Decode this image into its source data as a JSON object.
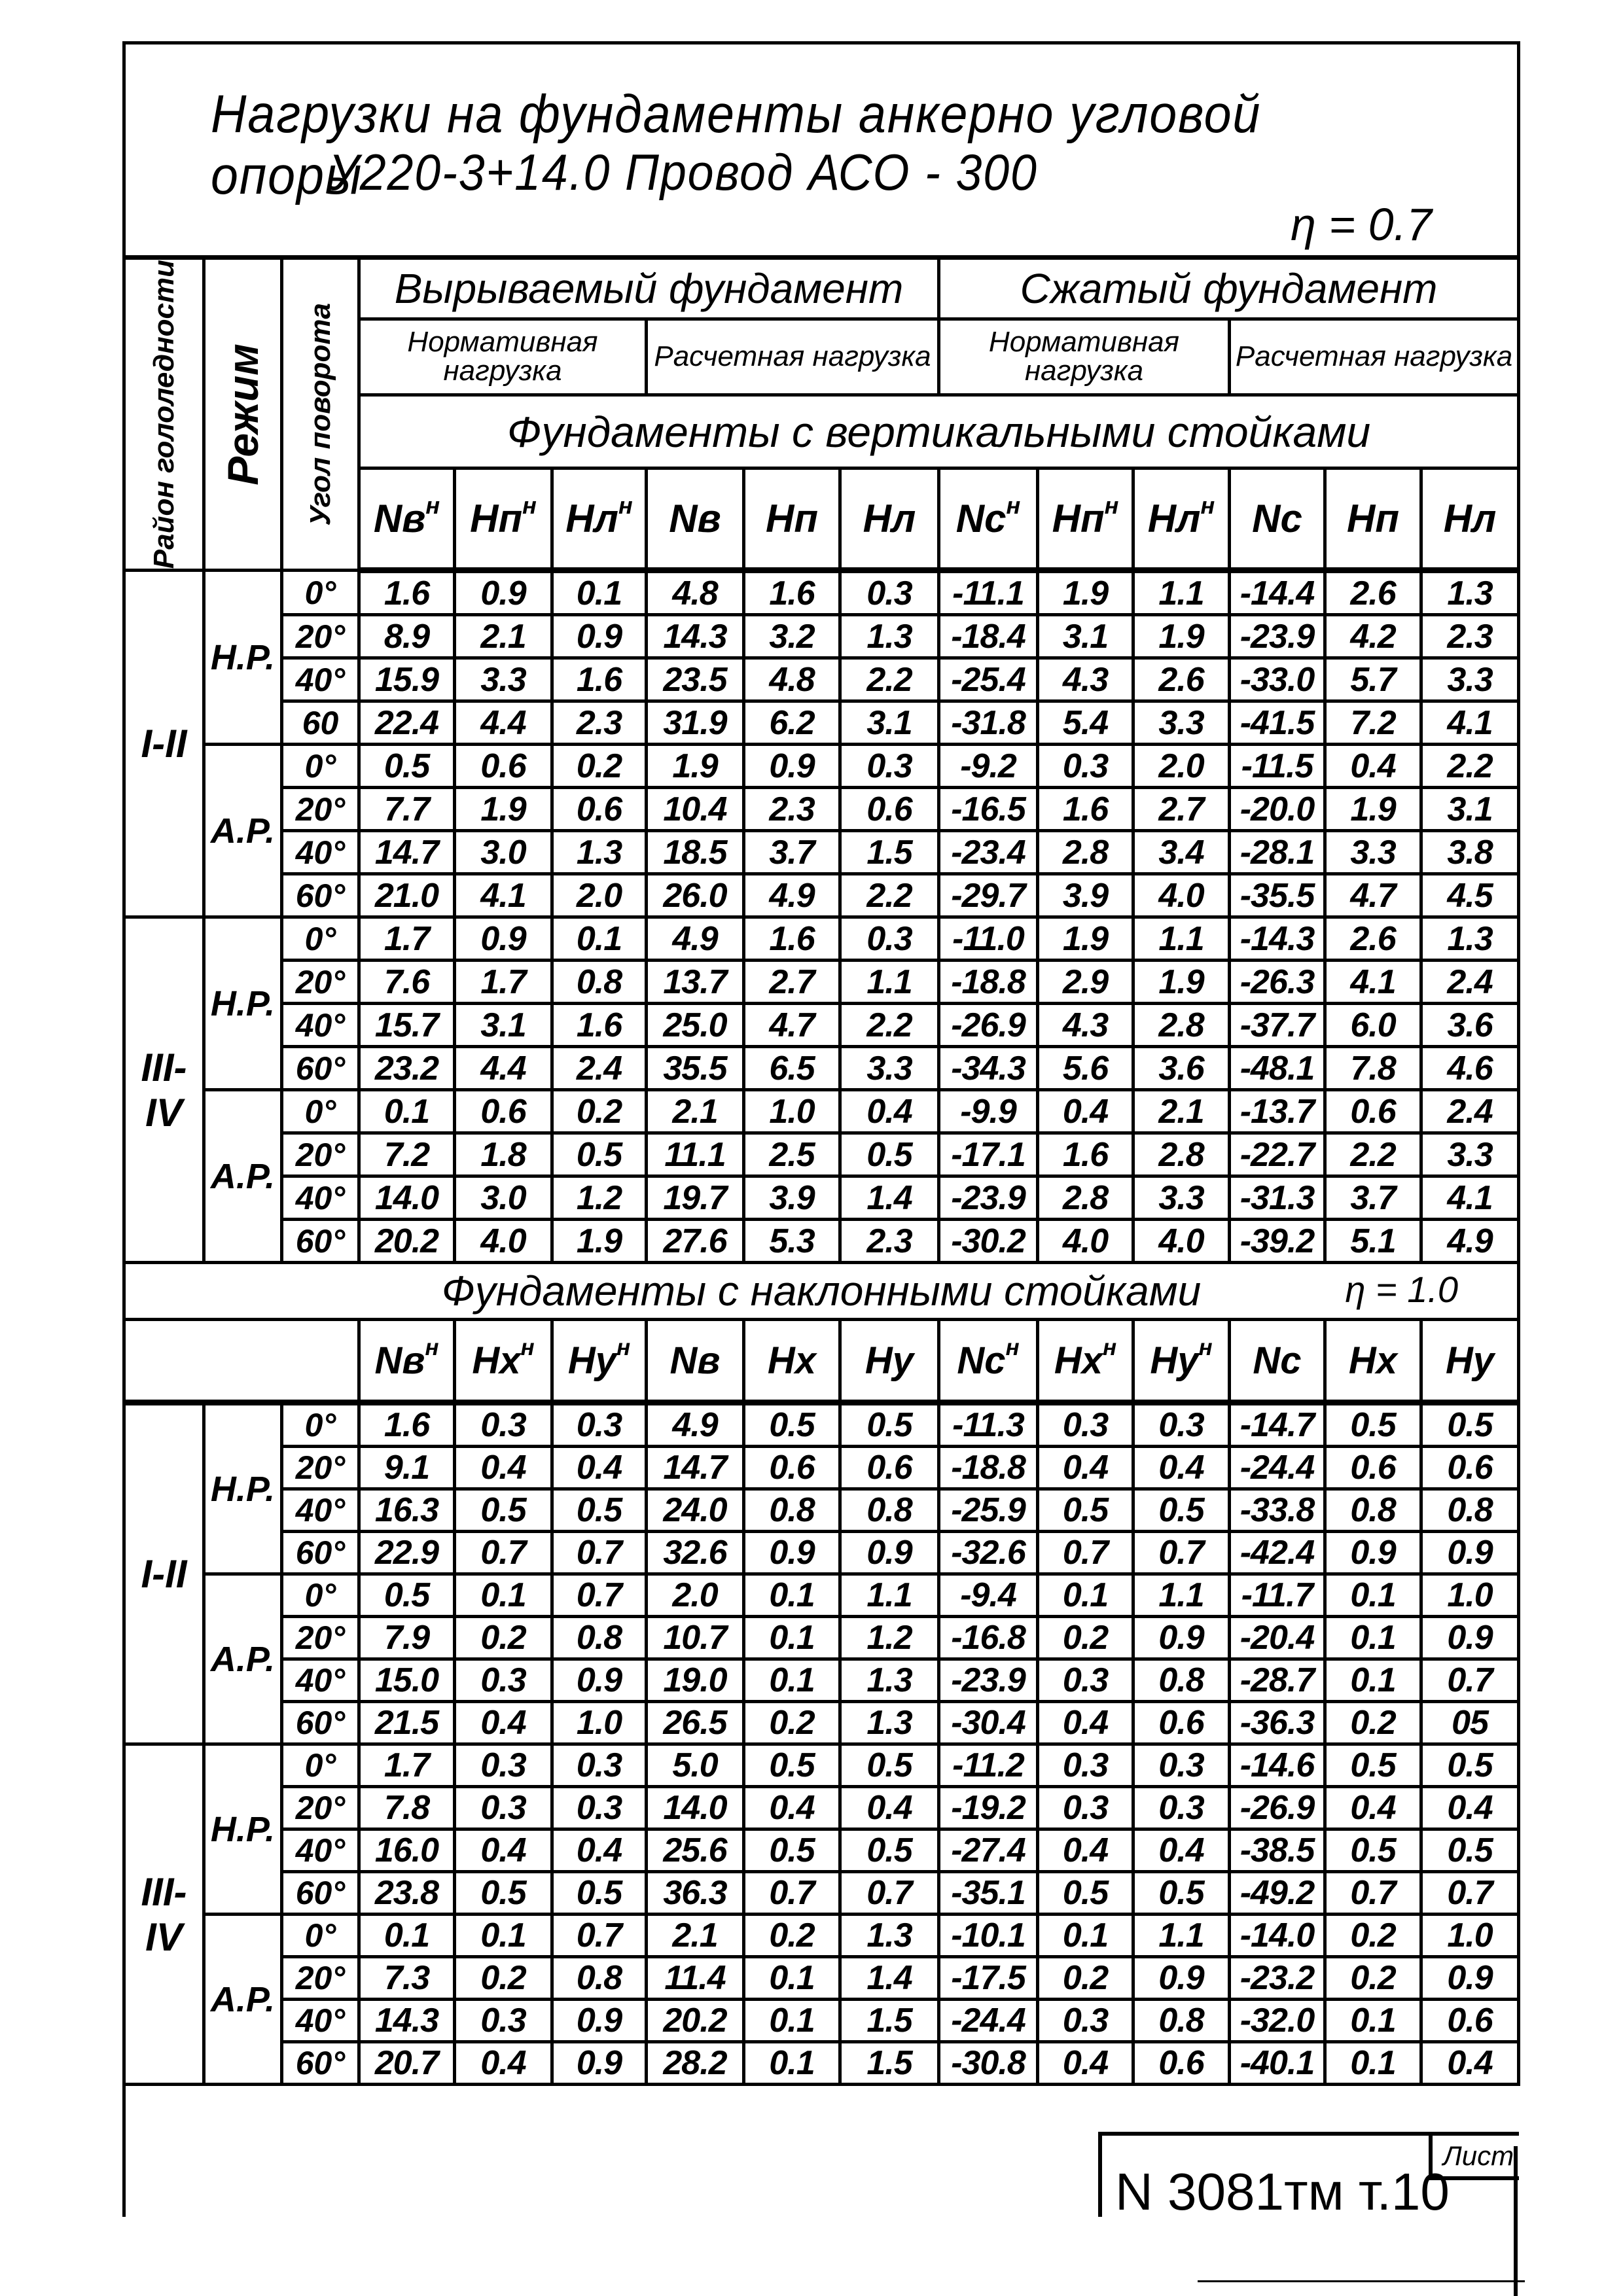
{
  "title": {
    "line1": "Нагрузки на фундаменты анкерно угловой опоры",
    "line2": "У220-3+14.0   Провод   АСО - 300",
    "eta": "η = 0.7"
  },
  "header": {
    "ice_region": "Район гололедности",
    "mode": "Режим",
    "angle": "Угол поворота",
    "uplift": "Вырываемый фундамент",
    "compressed": "Сжатый фундамент",
    "normative": "Нормативная нагрузка",
    "design": "Расчетная нагрузка"
  },
  "section1": {
    "title": "Фундаменты с вертикальными стойками",
    "symbols": [
      {
        "base": "Nв",
        "sup": "н"
      },
      {
        "base": "Hп",
        "sup": "н"
      },
      {
        "base": "Hл",
        "sup": "н"
      },
      {
        "base": "Nв",
        "sup": ""
      },
      {
        "base": "Hп",
        "sup": ""
      },
      {
        "base": "Hл",
        "sup": ""
      },
      {
        "base": "Nc",
        "sup": "н"
      },
      {
        "base": "Hп",
        "sup": "н"
      },
      {
        "base": "Hл",
        "sup": "н"
      },
      {
        "base": "Nc",
        "sup": ""
      },
      {
        "base": "Hп",
        "sup": ""
      },
      {
        "base": "Hл",
        "sup": ""
      }
    ],
    "groups": [
      {
        "region": "I-II",
        "modes": [
          {
            "mode": "Н.Р.",
            "rows": [
              {
                "angle": "0°",
                "values": [
                  "1.6",
                  "0.9",
                  "0.1",
                  "4.8",
                  "1.6",
                  "0.3",
                  "-11.1",
                  "1.9",
                  "1.1",
                  "-14.4",
                  "2.6",
                  "1.3"
                ]
              },
              {
                "angle": "20°",
                "values": [
                  "8.9",
                  "2.1",
                  "0.9",
                  "14.3",
                  "3.2",
                  "1.3",
                  "-18.4",
                  "3.1",
                  "1.9",
                  "-23.9",
                  "4.2",
                  "2.3"
                ]
              },
              {
                "angle": "40°",
                "values": [
                  "15.9",
                  "3.3",
                  "1.6",
                  "23.5",
                  "4.8",
                  "2.2",
                  "-25.4",
                  "4.3",
                  "2.6",
                  "-33.0",
                  "5.7",
                  "3.3"
                ]
              },
              {
                "angle": "60",
                "values": [
                  "22.4",
                  "4.4",
                  "2.3",
                  "31.9",
                  "6.2",
                  "3.1",
                  "-31.8",
                  "5.4",
                  "3.3",
                  "-41.5",
                  "7.2",
                  "4.1"
                ]
              }
            ]
          },
          {
            "mode": "А.Р.",
            "rows": [
              {
                "angle": "0°",
                "values": [
                  "0.5",
                  "0.6",
                  "0.2",
                  "1.9",
                  "0.9",
                  "0.3",
                  "-9.2",
                  "0.3",
                  "2.0",
                  "-11.5",
                  "0.4",
                  "2.2"
                ]
              },
              {
                "angle": "20°",
                "values": [
                  "7.7",
                  "1.9",
                  "0.6",
                  "10.4",
                  "2.3",
                  "0.6",
                  "-16.5",
                  "1.6",
                  "2.7",
                  "-20.0",
                  "1.9",
                  "3.1"
                ]
              },
              {
                "angle": "40°",
                "values": [
                  "14.7",
                  "3.0",
                  "1.3",
                  "18.5",
                  "3.7",
                  "1.5",
                  "-23.4",
                  "2.8",
                  "3.4",
                  "-28.1",
                  "3.3",
                  "3.8"
                ]
              },
              {
                "angle": "60°",
                "values": [
                  "21.0",
                  "4.1",
                  "2.0",
                  "26.0",
                  "4.9",
                  "2.2",
                  "-29.7",
                  "3.9",
                  "4.0",
                  "-35.5",
                  "4.7",
                  "4.5"
                ]
              }
            ]
          }
        ]
      },
      {
        "region": "III-IV",
        "modes": [
          {
            "mode": "Н.Р.",
            "rows": [
              {
                "angle": "0°",
                "values": [
                  "1.7",
                  "0.9",
                  "0.1",
                  "4.9",
                  "1.6",
                  "0.3",
                  "-11.0",
                  "1.9",
                  "1.1",
                  "-14.3",
                  "2.6",
                  "1.3"
                ]
              },
              {
                "angle": "20°",
                "values": [
                  "7.6",
                  "1.7",
                  "0.8",
                  "13.7",
                  "2.7",
                  "1.1",
                  "-18.8",
                  "2.9",
                  "1.9",
                  "-26.3",
                  "4.1",
                  "2.4"
                ]
              },
              {
                "angle": "40°",
                "values": [
                  "15.7",
                  "3.1",
                  "1.6",
                  "25.0",
                  "4.7",
                  "2.2",
                  "-26.9",
                  "4.3",
                  "2.8",
                  "-37.7",
                  "6.0",
                  "3.6"
                ]
              },
              {
                "angle": "60°",
                "values": [
                  "23.2",
                  "4.4",
                  "2.4",
                  "35.5",
                  "6.5",
                  "3.3",
                  "-34.3",
                  "5.6",
                  "3.6",
                  "-48.1",
                  "7.8",
                  "4.6"
                ]
              }
            ]
          },
          {
            "mode": "А.Р.",
            "rows": [
              {
                "angle": "0°",
                "values": [
                  "0.1",
                  "0.6",
                  "0.2",
                  "2.1",
                  "1.0",
                  "0.4",
                  "-9.9",
                  "0.4",
                  "2.1",
                  "-13.7",
                  "0.6",
                  "2.4"
                ]
              },
              {
                "angle": "20°",
                "values": [
                  "7.2",
                  "1.8",
                  "0.5",
                  "11.1",
                  "2.5",
                  "0.5",
                  "-17.1",
                  "1.6",
                  "2.8",
                  "-22.7",
                  "2.2",
                  "3.3"
                ]
              },
              {
                "angle": "40°",
                "values": [
                  "14.0",
                  "3.0",
                  "1.2",
                  "19.7",
                  "3.9",
                  "1.4",
                  "-23.9",
                  "2.8",
                  "3.3",
                  "-31.3",
                  "3.7",
                  "4.1"
                ]
              },
              {
                "angle": "60°",
                "values": [
                  "20.2",
                  "4.0",
                  "1.9",
                  "27.6",
                  "5.3",
                  "2.3",
                  "-30.2",
                  "4.0",
                  "4.0",
                  "-39.2",
                  "5.1",
                  "4.9"
                ]
              }
            ]
          }
        ]
      }
    ]
  },
  "section2": {
    "title": "Фундаменты с наклонными стойками",
    "eta": "η = 1.0",
    "symbols": [
      {
        "base": "Nв",
        "sup": "н"
      },
      {
        "base": "Hx",
        "sup": "н"
      },
      {
        "base": "Hy",
        "sup": "н"
      },
      {
        "base": "Nв",
        "sup": ""
      },
      {
        "base": "Hx",
        "sup": ""
      },
      {
        "base": "Hy",
        "sup": ""
      },
      {
        "base": "Nc",
        "sup": "н"
      },
      {
        "base": "Hx",
        "sup": "н"
      },
      {
        "base": "Hy",
        "sup": "н"
      },
      {
        "base": "Nc",
        "sup": ""
      },
      {
        "base": "Hx",
        "sup": ""
      },
      {
        "base": "Hy",
        "sup": ""
      }
    ],
    "groups": [
      {
        "region": "I-II",
        "modes": [
          {
            "mode": "Н.Р.",
            "rows": [
              {
                "angle": "0°",
                "values": [
                  "1.6",
                  "0.3",
                  "0.3",
                  "4.9",
                  "0.5",
                  "0.5",
                  "-11.3",
                  "0.3",
                  "0.3",
                  "-14.7",
                  "0.5",
                  "0.5"
                ]
              },
              {
                "angle": "20°",
                "values": [
                  "9.1",
                  "0.4",
                  "0.4",
                  "14.7",
                  "0.6",
                  "0.6",
                  "-18.8",
                  "0.4",
                  "0.4",
                  "-24.4",
                  "0.6",
                  "0.6"
                ]
              },
              {
                "angle": "40°",
                "values": [
                  "16.3",
                  "0.5",
                  "0.5",
                  "24.0",
                  "0.8",
                  "0.8",
                  "-25.9",
                  "0.5",
                  "0.5",
                  "-33.8",
                  "0.8",
                  "0.8"
                ]
              },
              {
                "angle": "60°",
                "values": [
                  "22.9",
                  "0.7",
                  "0.7",
                  "32.6",
                  "0.9",
                  "0.9",
                  "-32.6",
                  "0.7",
                  "0.7",
                  "-42.4",
                  "0.9",
                  "0.9"
                ]
              }
            ]
          },
          {
            "mode": "А.Р.",
            "rows": [
              {
                "angle": "0°",
                "values": [
                  "0.5",
                  "0.1",
                  "0.7",
                  "2.0",
                  "0.1",
                  "1.1",
                  "-9.4",
                  "0.1",
                  "1.1",
                  "-11.7",
                  "0.1",
                  "1.0"
                ]
              },
              {
                "angle": "20°",
                "values": [
                  "7.9",
                  "0.2",
                  "0.8",
                  "10.7",
                  "0.1",
                  "1.2",
                  "-16.8",
                  "0.2",
                  "0.9",
                  "-20.4",
                  "0.1",
                  "0.9"
                ]
              },
              {
                "angle": "40°",
                "values": [
                  "15.0",
                  "0.3",
                  "0.9",
                  "19.0",
                  "0.1",
                  "1.3",
                  "-23.9",
                  "0.3",
                  "0.8",
                  "-28.7",
                  "0.1",
                  "0.7"
                ]
              },
              {
                "angle": "60°",
                "values": [
                  "21.5",
                  "0.4",
                  "1.0",
                  "26.5",
                  "0.2",
                  "1.3",
                  "-30.4",
                  "0.4",
                  "0.6",
                  "-36.3",
                  "0.2",
                  "05"
                ]
              }
            ]
          }
        ]
      },
      {
        "region": "III-IV",
        "modes": [
          {
            "mode": "Н.Р.",
            "rows": [
              {
                "angle": "0°",
                "values": [
                  "1.7",
                  "0.3",
                  "0.3",
                  "5.0",
                  "0.5",
                  "0.5",
                  "-11.2",
                  "0.3",
                  "0.3",
                  "-14.6",
                  "0.5",
                  "0.5"
                ]
              },
              {
                "angle": "20°",
                "values": [
                  "7.8",
                  "0.3",
                  "0.3",
                  "14.0",
                  "0.4",
                  "0.4",
                  "-19.2",
                  "0.3",
                  "0.3",
                  "-26.9",
                  "0.4",
                  "0.4"
                ]
              },
              {
                "angle": "40°",
                "values": [
                  "16.0",
                  "0.4",
                  "0.4",
                  "25.6",
                  "0.5",
                  "0.5",
                  "-27.4",
                  "0.4",
                  "0.4",
                  "-38.5",
                  "0.5",
                  "0.5"
                ]
              },
              {
                "angle": "60°",
                "values": [
                  "23.8",
                  "0.5",
                  "0.5",
                  "36.3",
                  "0.7",
                  "0.7",
                  "-35.1",
                  "0.5",
                  "0.5",
                  "-49.2",
                  "0.7",
                  "0.7"
                ]
              }
            ]
          },
          {
            "mode": "А.Р.",
            "rows": [
              {
                "angle": "0°",
                "values": [
                  "0.1",
                  "0.1",
                  "0.7",
                  "2.1",
                  "0.2",
                  "1.3",
                  "-10.1",
                  "0.1",
                  "1.1",
                  "-14.0",
                  "0.2",
                  "1.0"
                ]
              },
              {
                "angle": "20°",
                "values": [
                  "7.3",
                  "0.2",
                  "0.8",
                  "11.4",
                  "0.1",
                  "1.4",
                  "-17.5",
                  "0.2",
                  "0.9",
                  "-23.2",
                  "0.2",
                  "0.9"
                ]
              },
              {
                "angle": "40°",
                "values": [
                  "14.3",
                  "0.3",
                  "0.9",
                  "20.2",
                  "0.1",
                  "1.5",
                  "-24.4",
                  "0.3",
                  "0.8",
                  "-32.0",
                  "0.1",
                  "0.6"
                ]
              },
              {
                "angle": "60°",
                "values": [
                  "20.7",
                  "0.4",
                  "0.9",
                  "28.2",
                  "0.1",
                  "1.5",
                  "-30.8",
                  "0.4",
                  "0.6",
                  "-40.1",
                  "0.1",
                  "0.4"
                ]
              }
            ]
          }
        ]
      }
    ]
  },
  "footer": {
    "doc_number": "N 3081тм т.10",
    "sheet_label": "Лист"
  }
}
